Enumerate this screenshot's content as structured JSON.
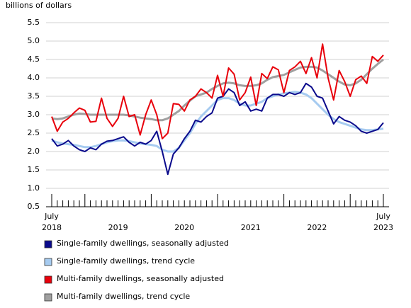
{
  "chart_data": {
    "type": "line",
    "y_label": "billions of dollars",
    "categories": [
      "July 2018",
      null,
      null,
      null,
      null,
      null,
      null,
      null,
      null,
      null,
      null,
      null,
      "2019",
      null,
      null,
      null,
      null,
      null,
      null,
      null,
      null,
      null,
      null,
      null,
      "2020",
      null,
      null,
      null,
      null,
      null,
      null,
      null,
      null,
      null,
      null,
      null,
      "2021",
      null,
      null,
      null,
      null,
      null,
      null,
      null,
      null,
      null,
      null,
      null,
      "2022",
      null,
      null,
      null,
      null,
      null,
      null,
      null,
      null,
      null,
      null,
      null,
      "July 2023"
    ],
    "ylim": [
      0.5,
      5.5
    ],
    "yticks": [
      0.5,
      {
        "value": 1,
        "label": "1.0"
      },
      1.5,
      {
        "value": 2,
        "label": "2.0"
      },
      2.5,
      {
        "value": 3,
        "label": "3.0"
      },
      3.5,
      {
        "value": 4,
        "label": "4.0"
      },
      4.5,
      {
        "value": 5,
        "label": "5.0"
      },
      5.5
    ],
    "grid": true,
    "series": [
      {
        "name": "Single-family dwellings, seasonally adjusted",
        "color": "#0a0a8c",
        "values": [
          2.35,
          2.15,
          2.2,
          2.3,
          2.15,
          2.05,
          2.0,
          2.1,
          2.05,
          2.2,
          2.28,
          2.3,
          2.35,
          2.4,
          2.25,
          2.15,
          2.25,
          2.2,
          2.3,
          2.55,
          2.0,
          1.38,
          1.93,
          2.1,
          2.35,
          2.55,
          2.85,
          2.8,
          2.95,
          3.05,
          3.45,
          3.5,
          3.7,
          3.6,
          3.25,
          3.35,
          3.1,
          3.15,
          3.1,
          3.45,
          3.55,
          3.55,
          3.5,
          3.6,
          3.55,
          3.6,
          3.85,
          3.75,
          3.5,
          3.45,
          3.1,
          2.75,
          2.95,
          2.85,
          2.8,
          2.7,
          2.55,
          2.5,
          2.55,
          2.6,
          2.78
        ]
      },
      {
        "name": "Single-family dwellings, trend cycle",
        "color": "#a6cbf0",
        "values": [
          2.3,
          2.25,
          2.22,
          2.2,
          2.18,
          2.15,
          2.12,
          2.12,
          2.15,
          2.2,
          2.25,
          2.28,
          2.3,
          2.3,
          2.28,
          2.25,
          2.22,
          2.2,
          2.18,
          2.15,
          2.05,
          2.0,
          2.0,
          2.1,
          2.3,
          2.5,
          2.75,
          2.95,
          3.1,
          3.25,
          3.4,
          3.45,
          3.45,
          3.4,
          3.3,
          3.25,
          3.25,
          3.3,
          3.35,
          3.45,
          3.5,
          3.55,
          3.58,
          3.6,
          3.62,
          3.6,
          3.55,
          3.45,
          3.3,
          3.15,
          3.0,
          2.88,
          2.8,
          2.75,
          2.7,
          2.65,
          2.6,
          2.58,
          2.58,
          2.6,
          2.62
        ]
      },
      {
        "name": "Multi-family dwellings, seasonally adjusted",
        "color": "#e8000b",
        "values": [
          2.95,
          2.55,
          2.8,
          2.9,
          3.05,
          3.18,
          3.12,
          2.8,
          2.82,
          3.45,
          2.9,
          2.68,
          2.9,
          3.5,
          2.95,
          3.0,
          2.45,
          3.0,
          3.4,
          3.0,
          2.35,
          2.5,
          3.3,
          3.28,
          3.1,
          3.4,
          3.5,
          3.7,
          3.6,
          3.45,
          4.07,
          3.5,
          4.27,
          4.1,
          3.4,
          3.6,
          4.02,
          3.25,
          4.12,
          3.98,
          4.3,
          4.22,
          3.6,
          4.2,
          4.3,
          4.45,
          4.12,
          4.55,
          4.0,
          4.92,
          4.0,
          3.4,
          4.2,
          3.9,
          3.5,
          3.95,
          4.05,
          3.85,
          4.58,
          4.45,
          4.62
        ]
      },
      {
        "name": "Multi-family dwellings, trend cycle",
        "color": "#a0a0a0",
        "values": [
          2.9,
          2.88,
          2.9,
          2.95,
          3.0,
          3.03,
          3.02,
          3.0,
          3.0,
          3.0,
          3.0,
          3.0,
          3.0,
          3.0,
          2.98,
          2.95,
          2.92,
          2.9,
          2.88,
          2.85,
          2.85,
          2.9,
          3.0,
          3.1,
          3.25,
          3.38,
          3.5,
          3.55,
          3.6,
          3.7,
          3.78,
          3.85,
          3.87,
          3.85,
          3.8,
          3.78,
          3.78,
          3.8,
          3.85,
          3.95,
          4.02,
          4.05,
          4.08,
          4.15,
          4.22,
          4.28,
          4.3,
          4.3,
          4.28,
          4.2,
          4.1,
          4.0,
          3.9,
          3.82,
          3.8,
          3.85,
          3.95,
          4.1,
          4.25,
          4.38,
          4.5
        ]
      }
    ]
  }
}
